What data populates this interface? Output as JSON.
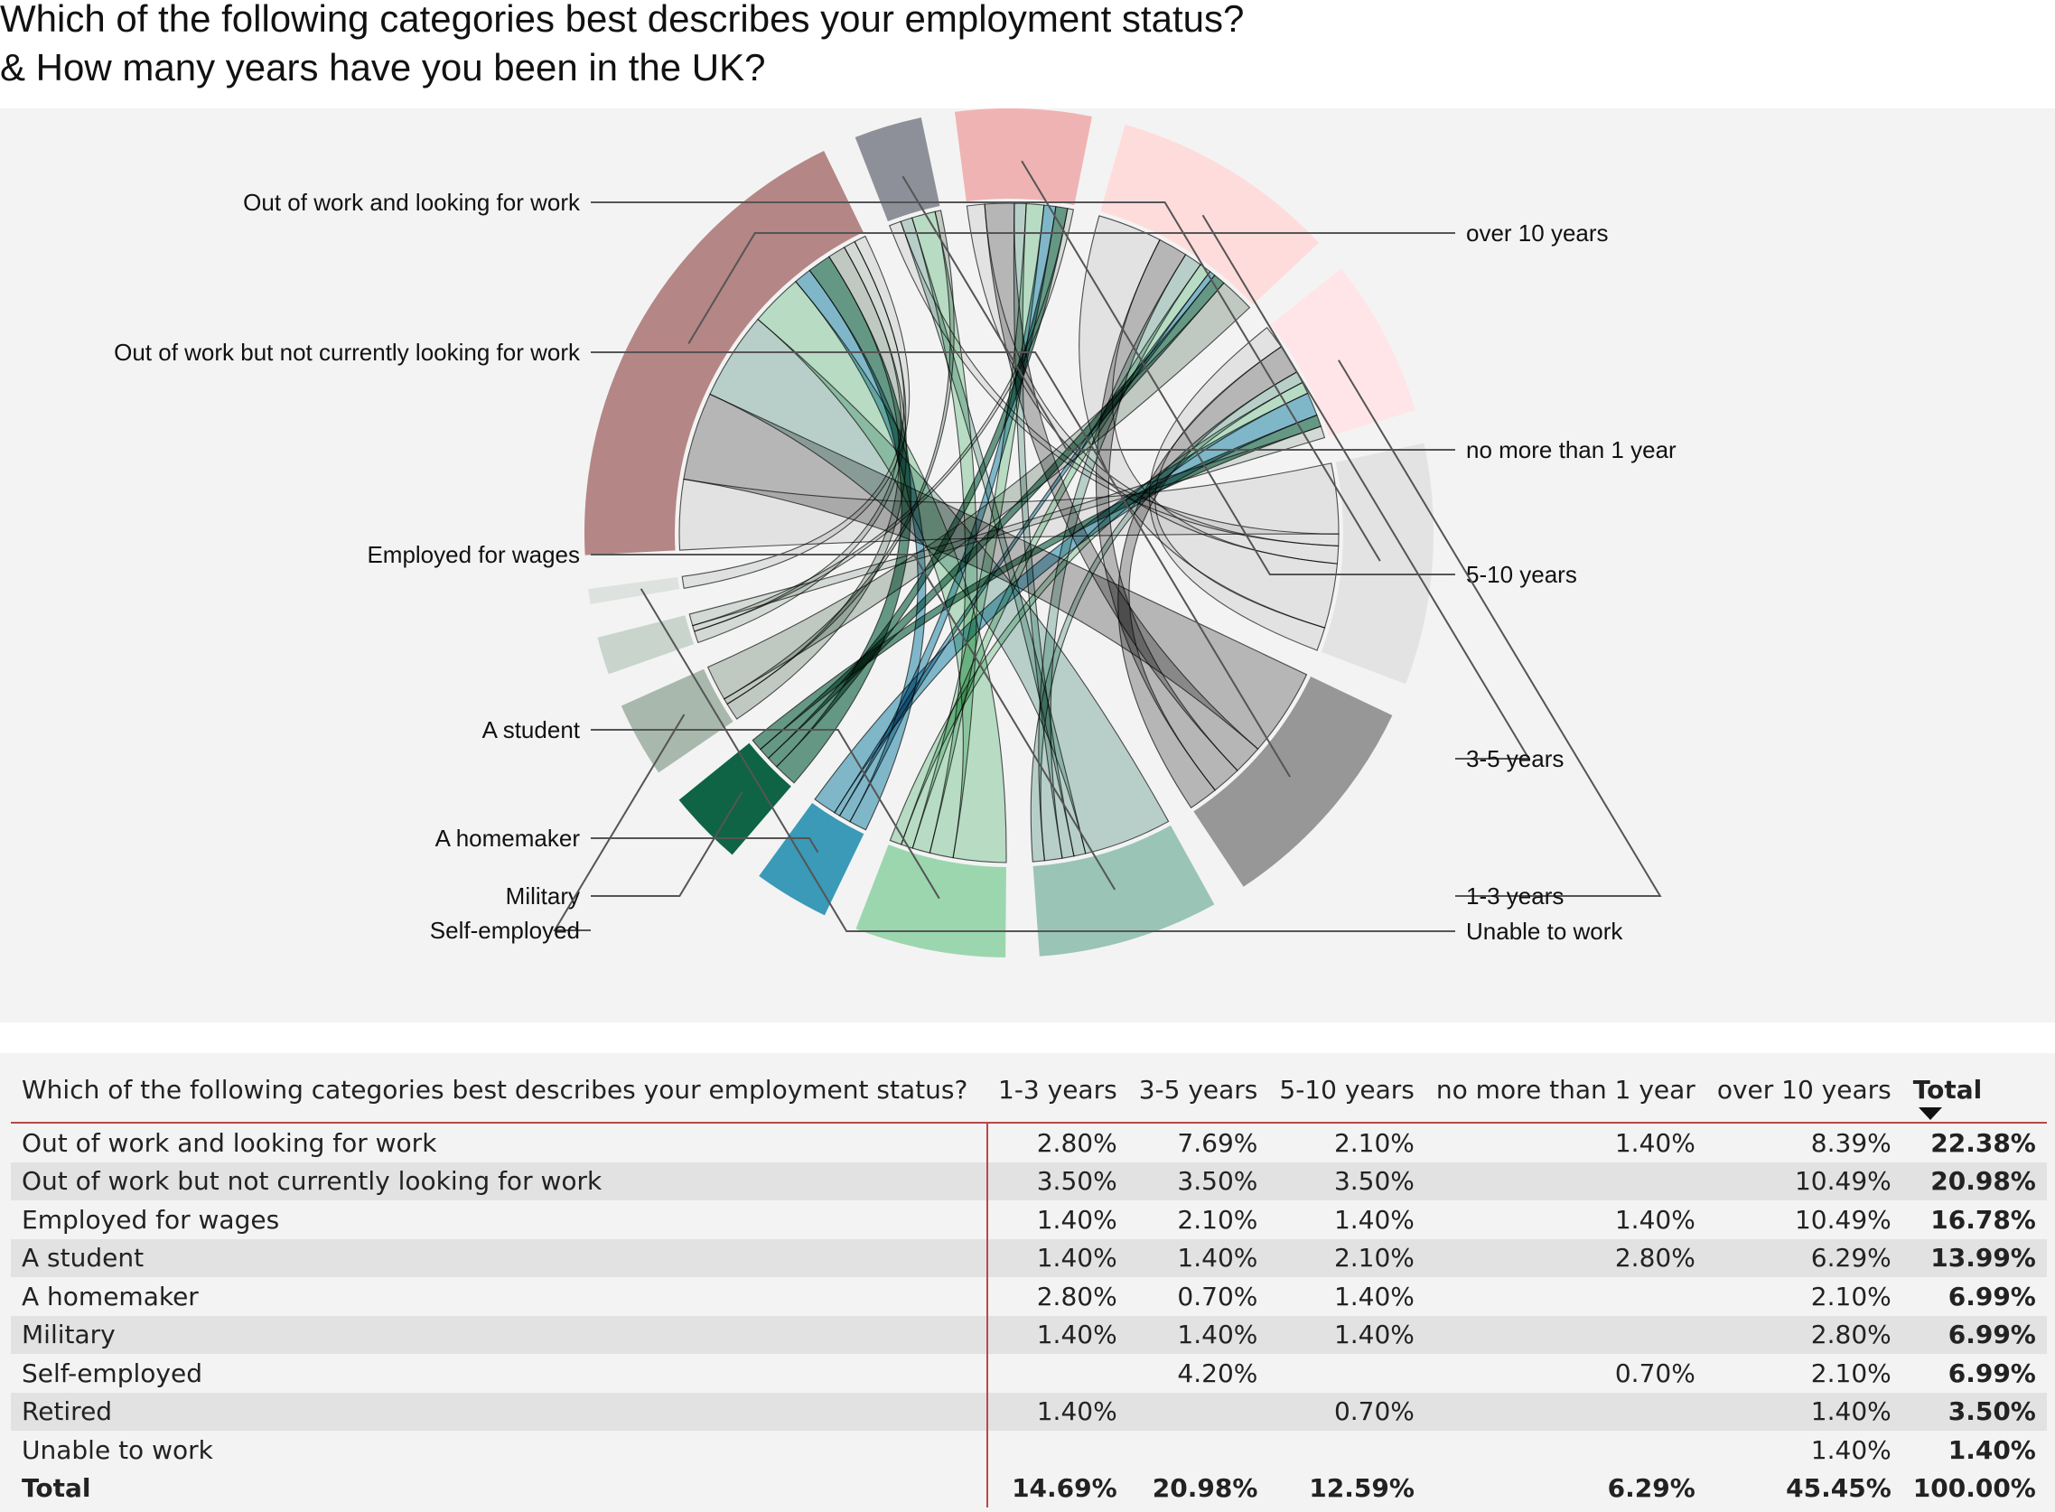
{
  "title_lines": [
    "Which of the following categories best describes your employment status?",
    "& How many years have you been in the UK?"
  ],
  "chart_data": {
    "type": "chord",
    "title": "Which of the following categories best describes your employment status? & How many years have you been in the UK?",
    "rows": [
      {
        "name": "Out of work and looking for work",
        "color": "#e3e3e3"
      },
      {
        "name": "Out of work but not currently looking for work",
        "color": "#979797"
      },
      {
        "name": "Employed for wages",
        "color": "#9ac4b6"
      },
      {
        "name": "A student",
        "color": "#9bd6af"
      },
      {
        "name": "A homemaker",
        "color": "#3a9ab8"
      },
      {
        "name": "Military",
        "color": "#0e6445"
      },
      {
        "name": "Self-employed",
        "color": "#a8b8ad"
      },
      {
        "name": "Retired",
        "color": "#c9d4cc"
      },
      {
        "name": "Unable to work",
        "color": "#dde2de"
      }
    ],
    "columns": [
      {
        "name": "1-3 years",
        "color": "#ffe5e7"
      },
      {
        "name": "3-5 years",
        "color": "#ffdcdc"
      },
      {
        "name": "5-10 years",
        "color": "#f0b3b4"
      },
      {
        "name": "no more than 1 year",
        "color": "#8e9099"
      },
      {
        "name": "over 10 years",
        "color": "#b48685"
      }
    ],
    "column_draw_order": [
      "over 10 years",
      "no more than 1 year",
      "5-10 years",
      "3-5 years",
      "1-3 years"
    ],
    "values_pct": [
      [
        2.8,
        7.69,
        2.1,
        1.4,
        8.39
      ],
      [
        3.5,
        3.5,
        3.5,
        0,
        10.49
      ],
      [
        1.4,
        2.1,
        1.4,
        1.4,
        10.49
      ],
      [
        1.4,
        1.4,
        2.1,
        2.8,
        6.29
      ],
      [
        2.8,
        0.7,
        1.4,
        0,
        2.1
      ],
      [
        1.4,
        1.4,
        1.4,
        0,
        2.8
      ],
      [
        0,
        4.2,
        0,
        0.7,
        2.1
      ],
      [
        1.4,
        0,
        0.7,
        0,
        1.4
      ],
      [
        0,
        0,
        0,
        0,
        1.4
      ]
    ],
    "labels_left": [
      "Out of work and looking for work",
      "Out of work but not currently looking for work",
      "Employed for wages",
      "A student",
      "A homemaker",
      "Military",
      "Self-employed"
    ],
    "labels_right": [
      "over 10 years",
      "no more than 1 year",
      "5-10 years",
      "3-5 years",
      "1-3 years",
      "Unable to work"
    ]
  },
  "table": {
    "header_row_label": "Which of the following categories best describes your employment status?",
    "columns": [
      "1-3 years",
      "3-5 years",
      "5-10 years",
      "no more than 1 year",
      "over 10 years",
      "Total"
    ],
    "rows": [
      {
        "label": "Out of work and looking for work",
        "cells": [
          "2.80%",
          "7.69%",
          "2.10%",
          "1.40%",
          "8.39%"
        ],
        "total": "22.38%"
      },
      {
        "label": "Out of work but not currently looking for work",
        "cells": [
          "3.50%",
          "3.50%",
          "3.50%",
          "",
          "10.49%"
        ],
        "total": "20.98%"
      },
      {
        "label": "Employed for wages",
        "cells": [
          "1.40%",
          "2.10%",
          "1.40%",
          "1.40%",
          "10.49%"
        ],
        "total": "16.78%"
      },
      {
        "label": "A student",
        "cells": [
          "1.40%",
          "1.40%",
          "2.10%",
          "2.80%",
          "6.29%"
        ],
        "total": "13.99%"
      },
      {
        "label": "A homemaker",
        "cells": [
          "2.80%",
          "0.70%",
          "1.40%",
          "",
          "2.10%"
        ],
        "total": "6.99%"
      },
      {
        "label": "Military",
        "cells": [
          "1.40%",
          "1.40%",
          "1.40%",
          "",
          "2.80%"
        ],
        "total": "6.99%"
      },
      {
        "label": "Self-employed",
        "cells": [
          "",
          "4.20%",
          "",
          "0.70%",
          "2.10%"
        ],
        "total": "6.99%"
      },
      {
        "label": "Retired",
        "cells": [
          "1.40%",
          "",
          "0.70%",
          "",
          "1.40%"
        ],
        "total": "3.50%"
      },
      {
        "label": "Unable to work",
        "cells": [
          "",
          "",
          "",
          "",
          "1.40%"
        ],
        "total": "1.40%"
      }
    ],
    "total_row": {
      "label": "Total",
      "cells": [
        "14.69%",
        "20.98%",
        "12.59%",
        "6.29%",
        "45.45%"
      ],
      "total": "100.00%"
    }
  }
}
